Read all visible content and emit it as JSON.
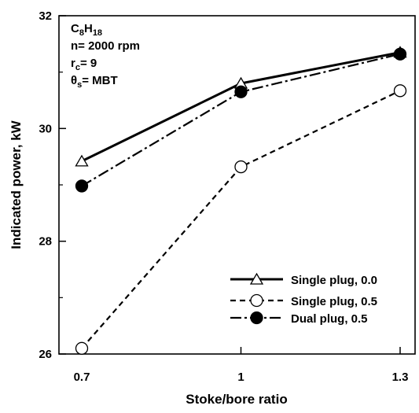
{
  "chart_data": {
    "type": "line",
    "xlabel": "Stoke/bore ratio",
    "ylabel": "Indicated power, kW",
    "x": [
      0.7,
      1.0,
      1.3
    ],
    "xticks": [
      "0.7",
      "1",
      "1.3"
    ],
    "yticks": [
      "26",
      "28",
      "30",
      "32"
    ],
    "xlim": [
      0.7,
      1.3
    ],
    "ylim": [
      26,
      32
    ],
    "grid": false,
    "legend_position": "bottom-right",
    "series": [
      {
        "name": "Single plug, 0.0",
        "values": [
          29.42,
          30.8,
          31.35
        ],
        "line_style": "solid",
        "marker": "open-triangle",
        "color": "#000000"
      },
      {
        "name": "Single plug, 0.5",
        "values": [
          26.1,
          29.32,
          30.67
        ],
        "line_style": "dashed",
        "marker": "open-circle",
        "color": "#000000"
      },
      {
        "name": "Dual plug, 0.5",
        "values": [
          28.98,
          30.65,
          31.32
        ],
        "line_style": "dash-dot",
        "marker": "filled-circle",
        "color": "#000000"
      }
    ],
    "annotations": {
      "fuel": {
        "base": "C",
        "sub1": "8",
        "mid": "H",
        "sub2": "18"
      },
      "speed": "n= 2000 rpm",
      "compression": {
        "base": "r",
        "sub": "c",
        "rest": "= 9"
      },
      "timing": {
        "base": "θ",
        "sub": "s",
        "rest": "= MBT"
      }
    }
  }
}
